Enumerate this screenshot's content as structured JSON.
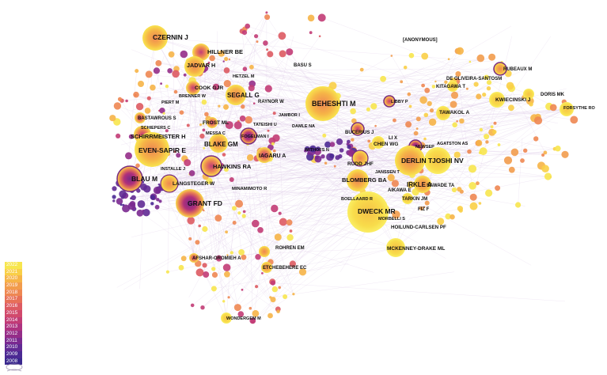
{
  "labels": {
    "czernin": "CZERNIN J",
    "hillner": "HILLNER BE",
    "jadvar": "JADVAR H",
    "hetzel": "HETZEL M",
    "cook": "COOK GJR",
    "brenner": "BRENNER W",
    "piert": "PIERT M",
    "segall": "SEGALL G",
    "raynor": "RAYNOR W",
    "basu": "BASU S",
    "beheshti": "BEHESHTI M",
    "jambor": "JAMBOR I",
    "damle": "DAMLE NA",
    "bastawrous": "BASTAWROUS S",
    "schiepers": "SCHIEPERS C",
    "frost": "FROST ML",
    "messa": "MESSA C",
    "tateishi": "TATEISHI U",
    "fogelman": "FOGELMAN I",
    "schirrmeister": "SCHIRRMEISTER H",
    "blakegm": "BLAKE GM",
    "evensapir": "EVEN-SAPIR E",
    "iagaru": "IAGARU A",
    "withofs": "WITHOFS N",
    "hawkins": "HAWKINS RA",
    "installe": "INSTALLE J",
    "blau": "BLAU M",
    "langsteger": "LANGSTEGER W",
    "minamimoto": "MINAMIMOTO R",
    "grant": "GRANT FD",
    "anonymous": "[ANONYMOUS]",
    "rubeaux": "RUBEAUX M",
    "deoliveira": "DE OLIVEIRA-SANTOSM",
    "kitagawa": "KITAGAWA T",
    "kwiecinski": "KWIECINSKI J",
    "doris": "DORIS MK",
    "forsythe": "FORSYTHE RO",
    "libby": "LIBBY P",
    "tawakol": "TAWAKOL A",
    "bucerius": "BUCERIUS J",
    "lix": "LI X",
    "chenwg": "CHEN WG",
    "newsep": "NEWSEP",
    "agatston": "AGATSTON AS",
    "derlin": "DERLIN T",
    "joshinv": "JOSHI NV",
    "rudd": "RUDD JHF",
    "janssen": "JANSSEN T",
    "irkle": "IRKLE A",
    "blomberg": "BLOMBERG BA",
    "aikawa": "AIKAWA E",
    "sawade": "SAWADE TA",
    "boellaard": "BOELLAARD R",
    "tarkin": "TARKIN JM",
    "dweck": "DWECK MR",
    "fiz": "FIZ F",
    "morbelli": "MORBELLI S",
    "hoilund": "HOILUND-CARLSEN PF",
    "mckenney": "MCKENNEY-DRAKE ML",
    "afshar": "AFSHAR-OROMIEH A",
    "rohren": "ROHREN EM",
    "etchebehere": "ETCHEBEHERE EC",
    "wondergem": "WONDERGEM M"
  },
  "legend": {
    "years": [
      "2022",
      "2021",
      "2020",
      "2019",
      "2018",
      "2017",
      "2016",
      "2015",
      "2014",
      "2013",
      "2012",
      "2011",
      "2010",
      "2009",
      "2008"
    ],
    "colors": [
      "#f7e64e",
      "#f9cf47",
      "#f6b447",
      "#f29c4c",
      "#ee8752",
      "#e77058",
      "#dd5a62",
      "#d1496c",
      "#c23c76",
      "#ae3380",
      "#952d88",
      "#7a2990",
      "#612a94",
      "#4b2993",
      "#3a288e"
    ]
  },
  "colors": {
    "edge": "#d9c6e6",
    "node_outline": "#7a2b80",
    "label_text": "#111111"
  }
}
